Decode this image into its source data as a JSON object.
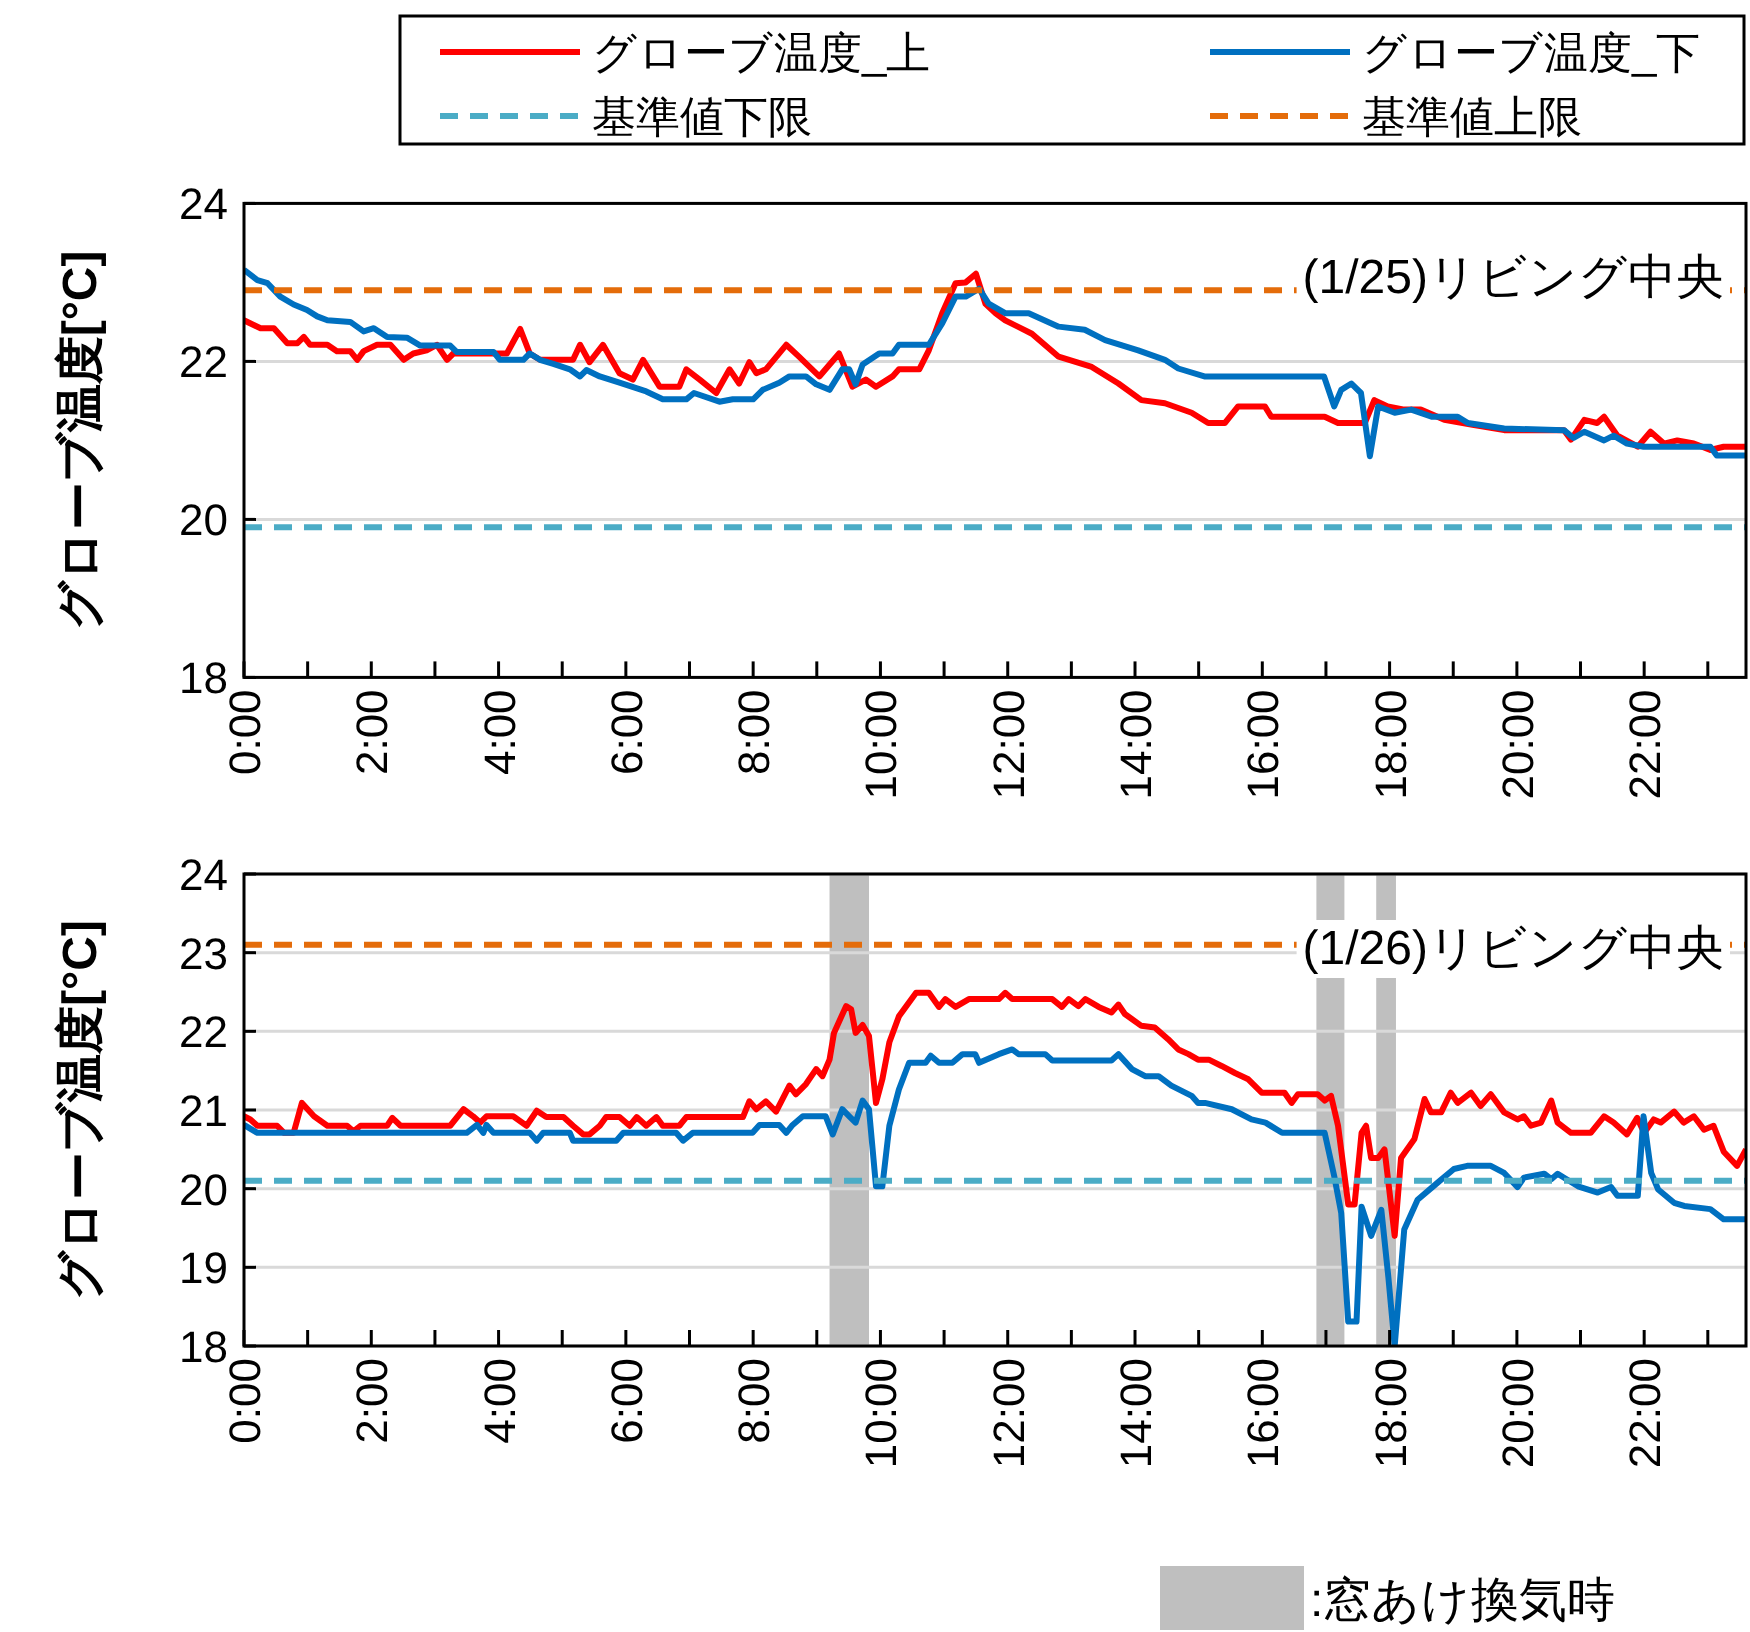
{
  "chart_data": [
    {
      "type": "line",
      "ylabel": "グローブ温度[°C]",
      "annotations": [
        "(1/25)リビング中央"
      ],
      "xlim": [
        0,
        23.6
      ],
      "ylim": [
        18,
        24
      ],
      "yticks": [
        18,
        20,
        22,
        24
      ],
      "xticks": [
        {
          "value": 0,
          "label": "0:00"
        },
        {
          "value": 1,
          "label": null
        },
        {
          "value": 2,
          "label": "2:00"
        },
        {
          "value": 3,
          "label": null
        },
        {
          "value": 4,
          "label": "4:00"
        },
        {
          "value": 5,
          "label": null
        },
        {
          "value": 6,
          "label": "6:00"
        },
        {
          "value": 7,
          "label": null
        },
        {
          "value": 8,
          "label": "8:00"
        },
        {
          "value": 9,
          "label": null
        },
        {
          "value": 10,
          "label": "10:00"
        },
        {
          "value": 11,
          "label": null
        },
        {
          "value": 12,
          "label": "12:00"
        },
        {
          "value": 13,
          "label": null
        },
        {
          "value": 14,
          "label": "14:00"
        },
        {
          "value": 15,
          "label": null
        },
        {
          "value": 16,
          "label": "16:00"
        },
        {
          "value": 17,
          "label": null
        },
        {
          "value": 18,
          "label": "18:00"
        },
        {
          "value": 19,
          "label": null
        },
        {
          "value": 20,
          "label": "20:00"
        },
        {
          "value": 21,
          "label": null
        },
        {
          "value": 22,
          "label": "22:00"
        },
        {
          "value": 23,
          "label": null
        }
      ],
      "grid": "y",
      "legend": "top",
      "marker": "none",
      "series": [
        {
          "name": "グローブ温度_上",
          "color": "#ff0000",
          "line_style": "solid",
          "x": [
            0,
            0.26,
            0.47,
            0.68,
            0.84,
            0.94,
            1.04,
            1.31,
            1.46,
            1.67,
            1.78,
            1.88,
            2.09,
            2.3,
            2.51,
            2.66,
            2.87,
            3.03,
            3.19,
            3.29,
            4.13,
            4.34,
            4.49,
            4.65,
            5.17,
            5.28,
            5.43,
            5.64,
            5.9,
            6.11,
            6.27,
            6.53,
            6.84,
            6.95,
            7.16,
            7.42,
            7.63,
            7.78,
            7.94,
            8.05,
            8.2,
            8.52,
            8.72,
            9.04,
            9.35,
            9.56,
            9.77,
            9.93,
            10.19,
            10.29,
            10.61,
            10.76,
            10.97,
            11.18,
            11.34,
            11.5,
            11.65,
            11.81,
            11.96,
            12.38,
            12.8,
            13.32,
            13.74,
            14.1,
            14.47,
            14.89,
            15.15,
            15.41,
            15.62,
            16.04,
            16.14,
            16.98,
            17.19,
            17.61,
            17.76,
            17.97,
            18.23,
            18.49,
            18.86,
            19.28,
            19.8,
            20.74,
            20.85,
            21.06,
            21.26,
            21.37,
            21.58,
            21.9,
            22.1,
            22.31,
            22.52,
            22.78,
            23.04,
            23.25,
            23.6
          ],
          "values": [
            22.52,
            22.42,
            22.42,
            22.23,
            22.23,
            22.31,
            22.21,
            22.21,
            22.13,
            22.13,
            22.02,
            22.13,
            22.21,
            22.21,
            22.02,
            22.1,
            22.14,
            22.21,
            22.02,
            22.1,
            22.1,
            22.41,
            22.1,
            22.02,
            22.02,
            22.21,
            21.99,
            22.21,
            21.85,
            21.77,
            22.02,
            21.68,
            21.68,
            21.9,
            21.77,
            21.6,
            21.9,
            21.72,
            21.99,
            21.85,
            21.9,
            22.21,
            22.06,
            21.81,
            22.1,
            21.68,
            21.77,
            21.68,
            21.81,
            21.9,
            21.9,
            22.14,
            22.61,
            22.99,
            23.0,
            23.11,
            22.73,
            22.61,
            22.52,
            22.35,
            22.06,
            21.93,
            21.72,
            21.51,
            21.47,
            21.35,
            21.22,
            21.22,
            21.43,
            21.43,
            21.3,
            21.3,
            21.22,
            21.22,
            21.51,
            21.43,
            21.39,
            21.39,
            21.26,
            21.2,
            21.13,
            21.13,
            21.01,
            21.26,
            21.22,
            21.3,
            21.06,
            20.92,
            21.11,
            20.96,
            21.0,
            20.96,
            20.88,
            20.92,
            20.92
          ]
        },
        {
          "name": "グローブ温度_下",
          "color": "#0070c0",
          "line_style": "solid",
          "x": [
            0,
            0.21,
            0.37,
            0.57,
            0.78,
            0.99,
            1.15,
            1.31,
            1.67,
            1.88,
            2.04,
            2.25,
            2.56,
            2.77,
            3.24,
            3.34,
            3.92,
            4.02,
            4.39,
            4.49,
            4.65,
            4.86,
            5.12,
            5.28,
            5.38,
            5.59,
            5.9,
            6.32,
            6.58,
            6.95,
            7.07,
            7.47,
            7.68,
            8.0,
            8.15,
            8.41,
            8.57,
            8.83,
            8.99,
            9.2,
            9.4,
            9.51,
            9.61,
            9.72,
            9.98,
            10.19,
            10.29,
            10.76,
            10.97,
            11.18,
            11.34,
            11.55,
            11.7,
            11.96,
            12.33,
            12.8,
            13.21,
            13.53,
            14.05,
            14.47,
            14.68,
            15.09,
            16.97,
            17.13,
            17.24,
            17.4,
            17.55,
            17.69,
            17.82,
            18.08,
            18.34,
            18.66,
            19.07,
            19.23,
            19.8,
            20.74,
            20.89,
            21.06,
            21.37,
            21.52,
            21.73,
            21.99,
            23.04,
            23.14,
            23.6
          ],
          "values": [
            23.16,
            23.03,
            22.99,
            22.82,
            22.72,
            22.65,
            22.57,
            22.52,
            22.5,
            22.38,
            22.42,
            22.31,
            22.3,
            22.2,
            22.2,
            22.12,
            22.12,
            22.02,
            22.02,
            22.1,
            22.02,
            21.97,
            21.9,
            21.81,
            21.89,
            21.81,
            21.73,
            21.62,
            21.52,
            21.52,
            21.6,
            21.49,
            21.52,
            21.52,
            21.64,
            21.73,
            21.81,
            21.81,
            21.71,
            21.64,
            21.9,
            21.9,
            21.71,
            21.96,
            22.1,
            22.1,
            22.21,
            22.21,
            22.48,
            22.82,
            22.82,
            22.92,
            22.73,
            22.61,
            22.61,
            22.44,
            22.4,
            22.27,
            22.14,
            22.02,
            21.91,
            21.81,
            21.81,
            21.43,
            21.64,
            21.72,
            21.6,
            20.8,
            21.43,
            21.35,
            21.39,
            21.3,
            21.3,
            21.22,
            21.15,
            21.13,
            21.03,
            21.11,
            21.0,
            21.06,
            20.96,
            20.92,
            20.92,
            20.81,
            20.81
          ]
        },
        {
          "name": "基準値下限",
          "color": "#4bacc6",
          "line_style": "dashed",
          "x": [
            0,
            23.6
          ],
          "values": [
            19.9,
            19.9
          ]
        },
        {
          "name": "基準値上限",
          "color": "#e46c0a",
          "line_style": "dashed",
          "x": [
            0,
            23.6
          ],
          "values": [
            22.9,
            22.9
          ]
        }
      ]
    },
    {
      "type": "line",
      "ylabel": "グローブ温度[°C]",
      "annotations": [
        "(1/26)リビング中央"
      ],
      "xlim": [
        0,
        23.6
      ],
      "ylim": [
        18,
        24
      ],
      "yticks": [
        18,
        19,
        20,
        21,
        22,
        23,
        24
      ],
      "xticks": [
        {
          "value": 0,
          "label": "0:00"
        },
        {
          "value": 1,
          "label": null
        },
        {
          "value": 2,
          "label": "2:00"
        },
        {
          "value": 3,
          "label": null
        },
        {
          "value": 4,
          "label": "4:00"
        },
        {
          "value": 5,
          "label": null
        },
        {
          "value": 6,
          "label": "6:00"
        },
        {
          "value": 7,
          "label": null
        },
        {
          "value": 8,
          "label": "8:00"
        },
        {
          "value": 9,
          "label": null
        },
        {
          "value": 10,
          "label": "10:00"
        },
        {
          "value": 11,
          "label": null
        },
        {
          "value": 12,
          "label": "12:00"
        },
        {
          "value": 13,
          "label": null
        },
        {
          "value": 14,
          "label": "14:00"
        },
        {
          "value": 15,
          "label": null
        },
        {
          "value": 16,
          "label": "16:00"
        },
        {
          "value": 17,
          "label": null
        },
        {
          "value": 18,
          "label": "18:00"
        },
        {
          "value": 19,
          "label": null
        },
        {
          "value": 20,
          "label": "20:00"
        },
        {
          "value": 21,
          "label": null
        },
        {
          "value": 22,
          "label": "22:00"
        },
        {
          "value": 23,
          "label": null
        }
      ],
      "grid": "y",
      "legend": "bottom right",
      "marker": "none",
      "bands": [
        {
          "axis": "x",
          "from": 9.2,
          "to": 9.82,
          "label": ":窓あけ換気時",
          "color": "#bfbfbf"
        },
        {
          "axis": "x",
          "from": 16.85,
          "to": 17.29,
          "color": "#bfbfbf"
        },
        {
          "axis": "x",
          "from": 17.79,
          "to": 18.1,
          "color": "#bfbfbf"
        }
      ],
      "series": [
        {
          "color": "#ff0000",
          "line_style": "solid",
          "x": [
            0,
            0.1,
            0.21,
            0.52,
            0.63,
            0.78,
            0.91,
            1.1,
            1.31,
            1.62,
            1.72,
            1.83,
            2.25,
            2.33,
            2.46,
            3.24,
            3.45,
            3.6,
            3.71,
            3.81,
            4.23,
            4.44,
            4.6,
            4.75,
            5.02,
            5.17,
            5.33,
            5.43,
            5.59,
            5.69,
            5.9,
            6.06,
            6.17,
            6.32,
            6.48,
            6.58,
            6.84,
            6.95,
            7.84,
            7.94,
            8.05,
            8.2,
            8.36,
            8.57,
            8.67,
            8.83,
            8.99,
            9.09,
            9.2,
            9.27,
            9.46,
            9.54,
            9.61,
            9.72,
            9.82,
            9.93,
            10.03,
            10.14,
            10.29,
            10.56,
            10.76,
            10.92,
            11.02,
            11.18,
            11.39,
            11.86,
            11.96,
            12.07,
            12.7,
            12.85,
            12.96,
            13.11,
            13.22,
            13.43,
            13.63,
            13.74,
            13.84,
            14.1,
            14.31,
            14.52,
            14.68,
            14.84,
            14.99,
            15.16,
            15.36,
            15.57,
            15.78,
            15.99,
            16.35,
            16.46,
            16.56,
            16.87,
            16.98,
            17.08,
            17.19,
            17.35,
            17.45,
            17.56,
            17.63,
            17.71,
            17.82,
            17.92,
            18.08,
            18.18,
            18.39,
            18.55,
            18.65,
            18.81,
            18.96,
            19.07,
            19.28,
            19.43,
            19.59,
            19.8,
            20.01,
            20.11,
            20.22,
            20.38,
            20.54,
            20.64,
            20.85,
            21.16,
            21.37,
            21.52,
            21.73,
            21.89,
            22.0,
            22.15,
            22.26,
            22.47,
            22.62,
            22.78,
            22.94,
            23.09,
            23.25,
            23.46,
            23.6
          ],
          "values": [
            20.92,
            20.88,
            20.8,
            20.8,
            20.71,
            20.71,
            21.09,
            20.92,
            20.8,
            20.8,
            20.73,
            20.8,
            20.8,
            20.9,
            20.8,
            20.8,
            21.01,
            20.92,
            20.84,
            20.92,
            20.92,
            20.8,
            20.99,
            20.91,
            20.91,
            20.8,
            20.69,
            20.69,
            20.8,
            20.91,
            20.91,
            20.8,
            20.91,
            20.8,
            20.91,
            20.8,
            20.8,
            20.91,
            20.91,
            21.11,
            21.01,
            21.11,
            20.98,
            21.31,
            21.2,
            21.33,
            21.52,
            21.43,
            21.64,
            21.98,
            22.32,
            22.28,
            21.98,
            22.08,
            21.94,
            21.09,
            21.39,
            21.86,
            22.19,
            22.49,
            22.49,
            22.31,
            22.41,
            22.31,
            22.41,
            22.41,
            22.49,
            22.41,
            22.41,
            22.31,
            22.41,
            22.32,
            22.41,
            22.31,
            22.24,
            22.34,
            22.22,
            22.07,
            22.05,
            21.9,
            21.77,
            21.71,
            21.64,
            21.64,
            21.56,
            21.47,
            21.39,
            21.22,
            21.22,
            21.09,
            21.2,
            21.2,
            21.12,
            21.18,
            20.8,
            19.8,
            19.8,
            20.71,
            20.8,
            20.39,
            20.39,
            20.5,
            19.4,
            20.39,
            20.63,
            21.14,
            20.97,
            20.97,
            21.22,
            21.09,
            21.22,
            21.05,
            21.2,
            20.97,
            20.88,
            20.92,
            20.8,
            20.84,
            21.12,
            20.84,
            20.71,
            20.71,
            20.92,
            20.84,
            20.69,
            20.9,
            20.71,
            20.88,
            20.84,
            20.98,
            20.84,
            20.92,
            20.75,
            20.8,
            20.47,
            20.29,
            20.5
          ]
        },
        {
          "color": "#0070c0",
          "line_style": "solid",
          "x": [
            0,
            0.21,
            3.5,
            3.66,
            3.76,
            3.81,
            3.92,
            4.49,
            4.6,
            4.7,
            5.12,
            5.17,
            5.85,
            5.96,
            6.79,
            6.9,
            7.05,
            7.99,
            8.1,
            8.41,
            8.52,
            8.62,
            8.78,
            9.14,
            9.25,
            9.4,
            9.51,
            9.61,
            9.72,
            9.82,
            9.93,
            10.03,
            10.14,
            10.29,
            10.45,
            10.71,
            10.79,
            10.92,
            11.13,
            11.29,
            11.49,
            11.55,
            11.86,
            12.07,
            12.17,
            12.59,
            12.7,
            13.63,
            13.74,
            13.95,
            14.16,
            14.37,
            14.57,
            14.89,
            14.99,
            15.1,
            15.52,
            15.83,
            16.05,
            16.31,
            16.98,
            17.13,
            17.24,
            17.35,
            17.48,
            17.56,
            17.71,
            17.87,
            17.98,
            18.08,
            18.23,
            18.44,
            18.76,
            19.01,
            19.22,
            19.59,
            19.8,
            20.01,
            20.11,
            20.43,
            20.54,
            20.64,
            20.96,
            21.27,
            21.48,
            21.58,
            21.9,
            21.99,
            22.11,
            22.22,
            22.47,
            22.63,
            23.04,
            23.25,
            23.6
          ],
          "values": [
            20.81,
            20.71,
            20.71,
            20.81,
            20.71,
            20.81,
            20.71,
            20.71,
            20.61,
            20.71,
            20.71,
            20.61,
            20.61,
            20.71,
            20.71,
            20.61,
            20.71,
            20.71,
            20.81,
            20.81,
            20.71,
            20.81,
            20.92,
            20.92,
            20.69,
            21.01,
            20.92,
            20.84,
            21.12,
            21.01,
            20.03,
            20.03,
            20.8,
            21.26,
            21.6,
            21.6,
            21.69,
            21.6,
            21.6,
            21.71,
            21.71,
            21.6,
            21.71,
            21.77,
            21.71,
            21.71,
            21.63,
            21.63,
            21.71,
            21.52,
            21.43,
            21.43,
            21.31,
            21.18,
            21.09,
            21.09,
            21.01,
            20.88,
            20.84,
            20.71,
            20.71,
            20.16,
            19.69,
            18.31,
            18.31,
            19.77,
            19.4,
            19.73,
            18.88,
            18.0,
            19.48,
            19.86,
            20.08,
            20.25,
            20.29,
            20.29,
            20.2,
            20.02,
            20.14,
            20.19,
            20.12,
            20.19,
            20.03,
            19.95,
            20.02,
            19.91,
            19.91,
            20.92,
            20.2,
            19.99,
            19.82,
            19.78,
            19.74,
            19.61,
            19.61
          ]
        },
        {
          "color": "#4bacc6",
          "line_style": "dashed",
          "x": [
            0,
            23.6
          ],
          "values": [
            20.1,
            20.1
          ]
        },
        {
          "color": "#e46c0a",
          "line_style": "dashed",
          "x": [
            0,
            23.6
          ],
          "values": [
            23.1,
            23.1
          ]
        }
      ]
    }
  ]
}
